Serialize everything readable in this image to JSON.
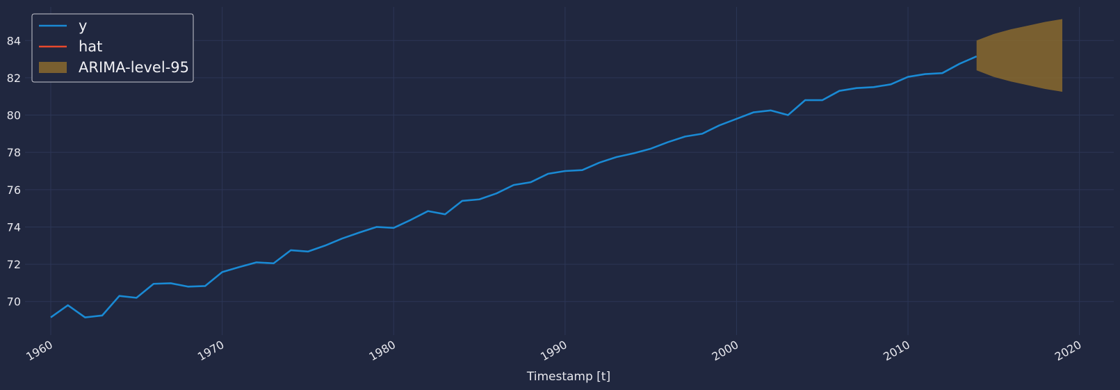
{
  "chart_data": {
    "type": "line",
    "title": "",
    "xlabel": "Timestamp [t]",
    "ylabel": "",
    "xlim": [
      1958.5,
      2022
    ],
    "ylim": [
      68.2,
      85.8
    ],
    "x_ticks": [
      1960,
      1970,
      1980,
      1990,
      2000,
      2010,
      2020
    ],
    "y_ticks": [
      70,
      72,
      74,
      76,
      78,
      80,
      82,
      84
    ],
    "grid": true,
    "legend_position": "top-left",
    "colors": {
      "background": "#20273f",
      "grid": "#2c3656",
      "y": "#1a8ad4",
      "hat": "#e8492d",
      "band": "#8a6a2e",
      "legend_border": "#c8c8d0"
    },
    "series": [
      {
        "name": "y",
        "x": [
          1960,
          1961,
          1962,
          1963,
          1964,
          1965,
          1966,
          1967,
          1968,
          1969,
          1970,
          1971,
          1972,
          1973,
          1974,
          1975,
          1976,
          1977,
          1978,
          1979,
          1980,
          1981,
          1982,
          1983,
          1984,
          1985,
          1986,
          1987,
          1988,
          1989,
          1990,
          1991,
          1992,
          1993,
          1994,
          1995,
          1996,
          1997,
          1998,
          1999,
          2000,
          2001,
          2002,
          2003,
          2004,
          2005,
          2006,
          2007,
          2008,
          2009,
          2010,
          2011,
          2012,
          2013,
          2014
        ],
        "values": [
          69.15,
          69.8,
          69.15,
          69.25,
          70.3,
          70.2,
          70.95,
          70.98,
          70.8,
          70.83,
          71.58,
          71.85,
          72.1,
          72.05,
          72.75,
          72.68,
          73.0,
          73.38,
          73.7,
          74.0,
          73.95,
          74.38,
          74.85,
          74.68,
          75.4,
          75.48,
          75.8,
          76.25,
          76.4,
          76.85,
          77.0,
          77.05,
          77.45,
          77.75,
          77.95,
          78.2,
          78.55,
          78.85,
          79.0,
          79.45,
          79.8,
          80.15,
          80.25,
          80.0,
          80.8,
          80.8,
          81.3,
          81.45,
          81.5,
          81.65,
          82.05,
          82.2,
          82.25,
          82.75,
          83.15
        ]
      },
      {
        "name": "hat",
        "x": [],
        "values": []
      },
      {
        "name": "ARIMA-level-95",
        "type": "area",
        "x": [
          2014,
          2015,
          2016,
          2017,
          2018,
          2019
        ],
        "lower": [
          82.4,
          82.05,
          81.8,
          81.6,
          81.4,
          81.25
        ],
        "upper": [
          84.0,
          84.35,
          84.6,
          84.8,
          85.0,
          85.15
        ]
      }
    ]
  }
}
